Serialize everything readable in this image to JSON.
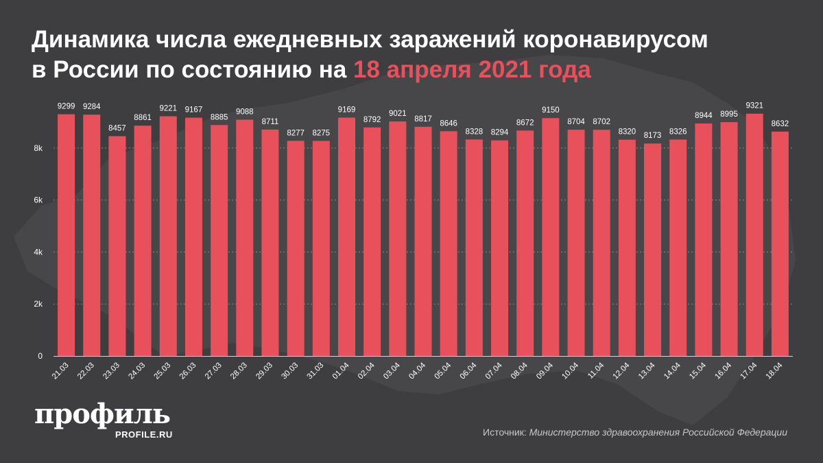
{
  "title": {
    "line1": "Динамика числа ежедневных заражений коронавирусом",
    "line2_prefix": "в России по состоянию на ",
    "line2_accent": "18 апреля 2021 года"
  },
  "colors": {
    "background": "#3e3e40",
    "bar": "#e8505b",
    "accent": "#e8505b",
    "text": "#ffffff"
  },
  "chart_data": {
    "type": "bar",
    "categories": [
      "21.03",
      "22.03",
      "23.03",
      "24.03",
      "25.03",
      "26.03",
      "27.03",
      "28.03",
      "29.03",
      "30.03",
      "31.03",
      "01.04",
      "02.04",
      "03.04",
      "04.04",
      "05.04",
      "06.04",
      "07.04",
      "08.04",
      "09.04",
      "10.04",
      "11.04",
      "12.04",
      "13.04",
      "14.04",
      "15.04",
      "16.04",
      "17.04",
      "18.04"
    ],
    "values": [
      9299,
      9284,
      8457,
      8861,
      9221,
      9167,
      8885,
      9088,
      8711,
      8277,
      8275,
      9169,
      8792,
      9021,
      8817,
      8646,
      8328,
      8294,
      8672,
      9150,
      8704,
      8702,
      8320,
      8173,
      8326,
      8944,
      8995,
      9321,
      8632
    ],
    "yticks": [
      0,
      2000,
      4000,
      6000,
      8000
    ],
    "ytick_labels": [
      "0",
      "2k",
      "4k",
      "6k",
      "8k"
    ],
    "ylim": [
      0,
      10000
    ],
    "grid": true,
    "data_labels": true
  },
  "logo": {
    "name": "профиль",
    "site": "PROFILE.RU"
  },
  "source": {
    "prefix": "Источник: ",
    "text": "Министерство здравоохранения Российской Федерации"
  }
}
